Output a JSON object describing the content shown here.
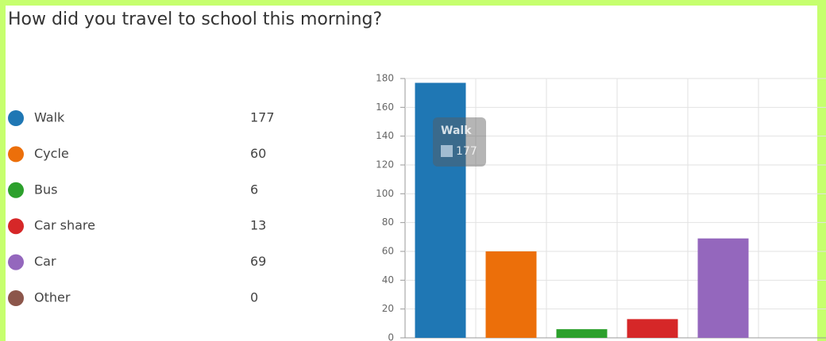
{
  "chart_data": {
    "type": "bar",
    "title": "How did you travel to school this morning?",
    "categories": [
      "Walk",
      "Cycle",
      "Bus",
      "Car share",
      "Car",
      "Other"
    ],
    "values": [
      177,
      60,
      6,
      13,
      69,
      0
    ],
    "colors": [
      "#1f77b4",
      "#ec6f0a",
      "#2ca02c",
      "#d62728",
      "#9467bd",
      "#8c564b"
    ],
    "ylim": [
      0,
      180
    ],
    "yticks": [
      0,
      20,
      40,
      60,
      80,
      100,
      120,
      140,
      160,
      180
    ],
    "grid": true
  }
}
